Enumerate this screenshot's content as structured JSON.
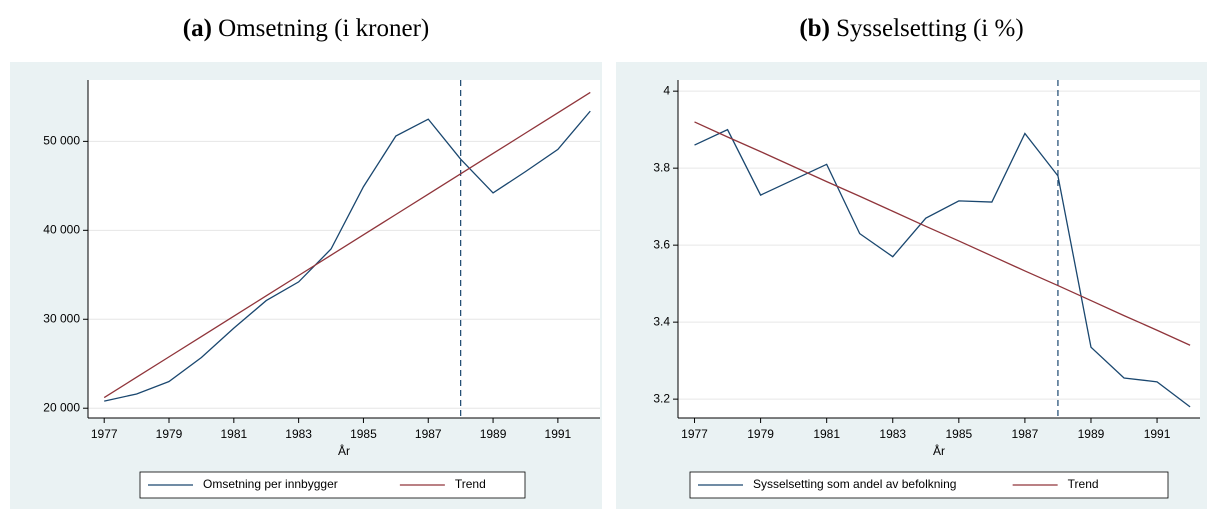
{
  "chart_data": [
    {
      "type": "line",
      "panel": "(a)",
      "title": "Omsetning (i kroner)",
      "xlabel": "År",
      "x": [
        1977,
        1978,
        1979,
        1980,
        1981,
        1982,
        1983,
        1984,
        1985,
        1986,
        1987,
        1988,
        1989,
        1990,
        1991,
        1992
      ],
      "series": [
        {
          "name": "Omsetning per innbygger",
          "color": "#1a476f",
          "values": [
            20800,
            21600,
            23000,
            25700,
            29000,
            32100,
            34200,
            37900,
            44900,
            50600,
            52500,
            48000,
            44200,
            46600,
            49100,
            53400
          ]
        },
        {
          "name": "Trend",
          "color": "#90353b",
          "values": [
            21200,
            23487,
            25773,
            28060,
            30347,
            32633,
            34920,
            37207,
            39493,
            41780,
            44067,
            46353,
            48640,
            50927,
            53213,
            55500
          ]
        }
      ],
      "xlim": [
        1976.5,
        1992.3
      ],
      "xticks": [
        1977,
        1979,
        1981,
        1983,
        1985,
        1987,
        1989,
        1991
      ],
      "ylim": [
        18900,
        56900
      ],
      "yticks": [
        {
          "value": 20000,
          "label": "20 000"
        },
        {
          "value": 30000,
          "label": "30 000"
        },
        {
          "value": 40000,
          "label": "40 000"
        },
        {
          "value": 50000,
          "label": "50 000"
        }
      ],
      "vline": 1988,
      "grid": true
    },
    {
      "type": "line",
      "panel": "(b)",
      "title": "Sysselsetting (i %)",
      "xlabel": "År",
      "x": [
        1977,
        1978,
        1979,
        1980,
        1981,
        1982,
        1983,
        1984,
        1985,
        1986,
        1987,
        1988,
        1989,
        1990,
        1991,
        1992
      ],
      "series": [
        {
          "name": "Sysselsetting som andel av befolkning",
          "color": "#1a476f",
          "values": [
            3.86,
            3.9,
            3.73,
            3.77,
            3.81,
            3.63,
            3.57,
            3.67,
            3.715,
            3.712,
            3.89,
            3.78,
            3.335,
            3.255,
            3.245,
            3.18
          ]
        },
        {
          "name": "Trend",
          "color": "#90353b",
          "values": [
            3.92,
            3.881,
            3.843,
            3.804,
            3.765,
            3.727,
            3.688,
            3.649,
            3.611,
            3.572,
            3.533,
            3.495,
            3.456,
            3.417,
            3.379,
            3.34
          ]
        }
      ],
      "xlim": [
        1976.5,
        1992.3
      ],
      "xticks": [
        1977,
        1979,
        1981,
        1983,
        1985,
        1987,
        1989,
        1991
      ],
      "ylim": [
        3.151,
        4.029
      ],
      "yticks": [
        3.2,
        3.4,
        3.6,
        3.8,
        4
      ],
      "vline": 1988,
      "grid": true
    }
  ]
}
